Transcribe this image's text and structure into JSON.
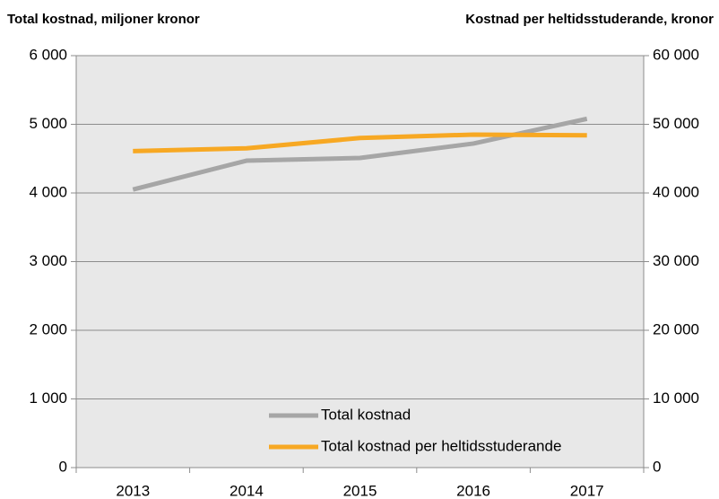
{
  "chart_data": {
    "type": "line",
    "y_title": "Total kostnad, miljoner kronor",
    "y2_title": "Kostnad per heltidsstuderande, kronor",
    "categories": [
      "2013",
      "2014",
      "2015",
      "2016",
      "2017"
    ],
    "series": [
      {
        "name": "Total kostnad",
        "color": "#a6a6a6",
        "values": [
          4050,
          4470,
          4510,
          4720,
          5080
        ]
      },
      {
        "name": "Total kostnad per heltidsstuderande",
        "color": "#f7a823",
        "values": [
          46100,
          46500,
          48000,
          48500,
          48400
        ],
        "axis": "y2"
      }
    ],
    "ylim": [
      0,
      6000
    ],
    "yticks": [
      0,
      {
        "value": 1000,
        "label": "1 000"
      },
      {
        "value": 2000,
        "label": "2 000"
      },
      {
        "value": 3000,
        "label": "3 000"
      },
      {
        "value": 4000,
        "label": "4 000"
      },
      {
        "value": 5000,
        "label": "5 000"
      },
      {
        "value": 6000,
        "label": "6 000"
      }
    ],
    "y2lim": [
      0,
      60000
    ],
    "y2ticks": [
      0,
      {
        "value": 10000,
        "label": "10 000"
      },
      {
        "value": 20000,
        "label": "20 000"
      },
      {
        "value": 30000,
        "label": "30 000"
      },
      {
        "value": 40000,
        "label": "40 000"
      },
      {
        "value": 50000,
        "label": "50 000"
      },
      {
        "value": 60000,
        "label": "60 000"
      }
    ],
    "grid": true,
    "legend": "lower center",
    "background": "#e8e8e8"
  }
}
